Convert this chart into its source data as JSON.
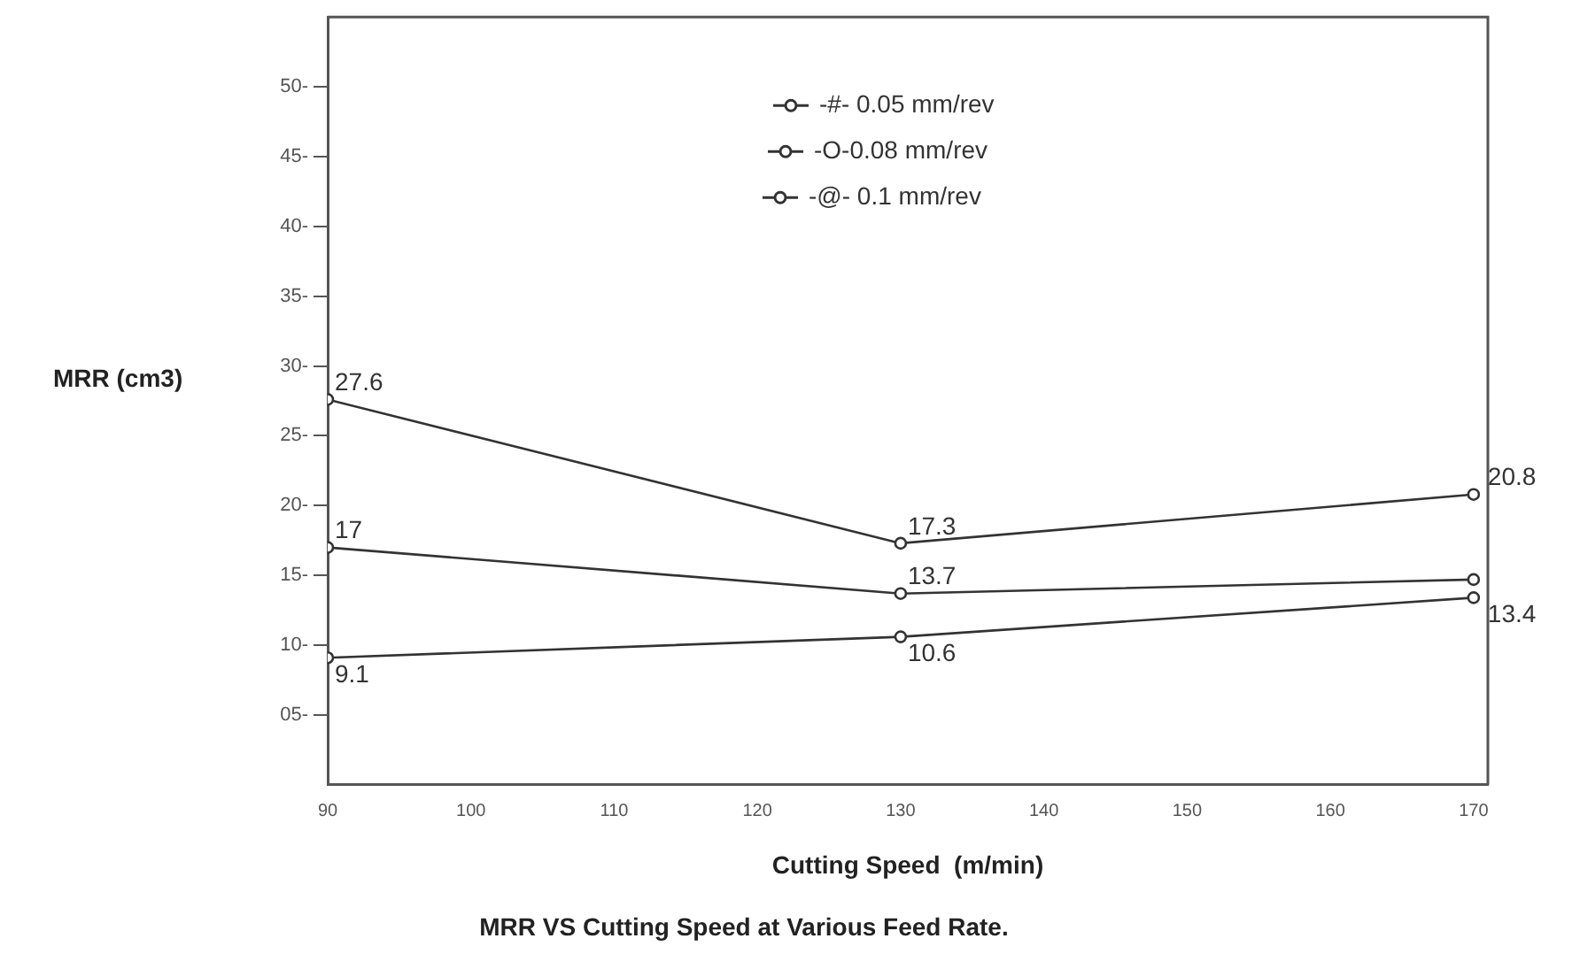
{
  "chart_data": {
    "type": "line",
    "title": "MRR VS Cutting Speed at Various Feed Rate.",
    "xlabel": "Cutting Speed  (m/min)",
    "ylabel": "MRR (cm3)",
    "x": [
      90,
      130,
      170
    ],
    "series": [
      {
        "name": "-#- 0.05 mm/rev",
        "color": "#333333",
        "values": [
          17,
          13.7,
          14.7
        ],
        "value_labels": [
          "17",
          "13.7",
          null
        ]
      },
      {
        "name": "-O-0.08 mm/rev",
        "color": "#333333",
        "values": [
          27.6,
          17.3,
          20.8
        ],
        "value_labels": [
          "27.6",
          "17.3",
          "20.8"
        ]
      },
      {
        "name": "-@- 0.1 mm/rev",
        "color": "#333333",
        "values": [
          9.1,
          10.6,
          13.4
        ],
        "value_labels": [
          "9.1",
          "10.6",
          "13.4"
        ]
      }
    ],
    "xlim": [
      90,
      171
    ],
    "xticks": [
      90,
      100,
      110,
      120,
      130,
      140,
      150,
      160,
      170
    ],
    "ylim": [
      0,
      55
    ],
    "yticks": [
      {
        "value": 5,
        "label": "05-"
      },
      {
        "value": 10,
        "label": "10-"
      },
      {
        "value": 15,
        "label": "15-"
      },
      {
        "value": 20,
        "label": "20-"
      },
      {
        "value": 25,
        "label": "25-"
      },
      {
        "value": 30,
        "label": "30-"
      },
      {
        "value": 35,
        "label": "35-"
      },
      {
        "value": 40,
        "label": "40-"
      },
      {
        "value": 45,
        "label": "45-"
      },
      {
        "value": 50,
        "label": "50-"
      }
    ],
    "grid": false,
    "legend": "top",
    "marker": "circle",
    "line_style": "solid"
  }
}
